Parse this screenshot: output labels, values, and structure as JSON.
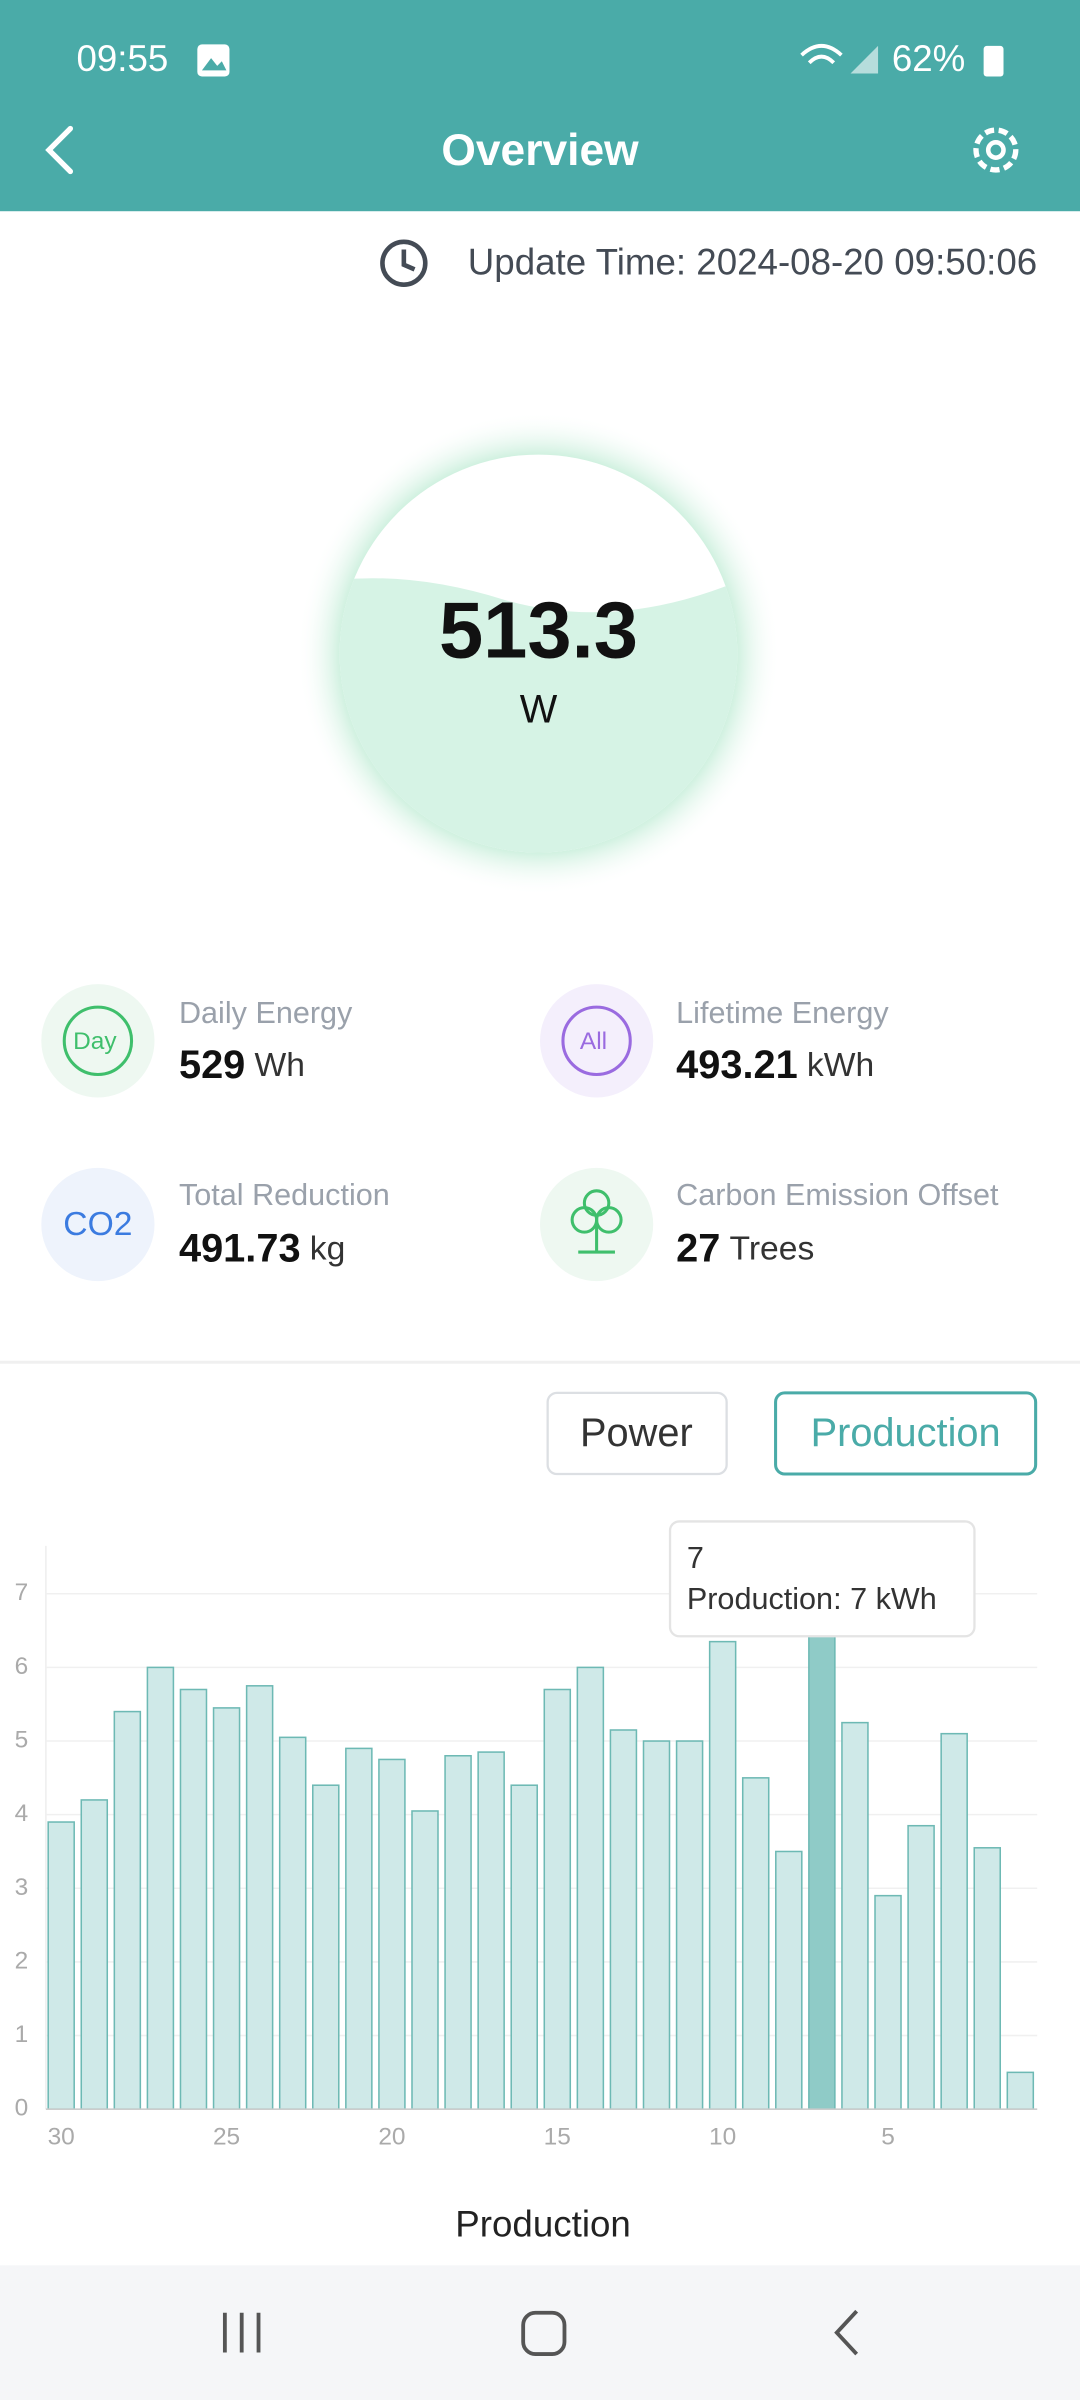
{
  "status_bar": {
    "time": "09:55",
    "battery": "62%"
  },
  "header": {
    "title": "Overview"
  },
  "update_time": "Update Time: 2024-08-20 09:50:06",
  "gauge": {
    "value": "513.3",
    "unit": "W"
  },
  "stats": [
    {
      "icon": "Day",
      "label": "Daily Energy",
      "value": "529",
      "unit": "Wh"
    },
    {
      "icon": "All",
      "label": "Lifetime Energy",
      "value": "493.21",
      "unit": "kWh"
    },
    {
      "icon": "CO2",
      "label": "Total Reduction",
      "value": "491.73",
      "unit": "kg"
    },
    {
      "label": "Carbon Emission Offset",
      "value": "27",
      "unit": "Trees"
    }
  ],
  "tabs": [
    "Power",
    "Production"
  ],
  "chart_data": {
    "type": "bar",
    "x_label": "Production",
    "categories": [
      "30",
      null,
      null,
      null,
      null,
      "25",
      null,
      null,
      null,
      null,
      "20",
      null,
      null,
      null,
      null,
      "15",
      null,
      null,
      null,
      null,
      "10",
      null,
      null,
      null,
      null,
      "5",
      null,
      null,
      null,
      null
    ],
    "values": [
      3.9,
      4.2,
      5.4,
      6.0,
      5.7,
      5.45,
      5.75,
      5.05,
      4.4,
      4.9,
      4.75,
      4.05,
      4.8,
      4.85,
      4.4,
      5.7,
      6.0,
      5.15,
      5.0,
      5.0,
      6.35,
      4.5,
      3.5,
      7,
      5.25,
      2.9,
      3.85,
      5.1,
      3.55,
      0.5
    ],
    "color": "#cfe9e8",
    "edge_color": "#6db9b4",
    "selected_index": 23,
    "selected_color": "#8fcbc7",
    "ylim": [
      0,
      7.65
    ],
    "yticks": [
      0,
      1,
      2,
      3,
      4,
      5,
      6,
      7
    ],
    "grid": true,
    "tooltip": {
      "title": "7",
      "text": "Production: 7 kWh"
    }
  }
}
